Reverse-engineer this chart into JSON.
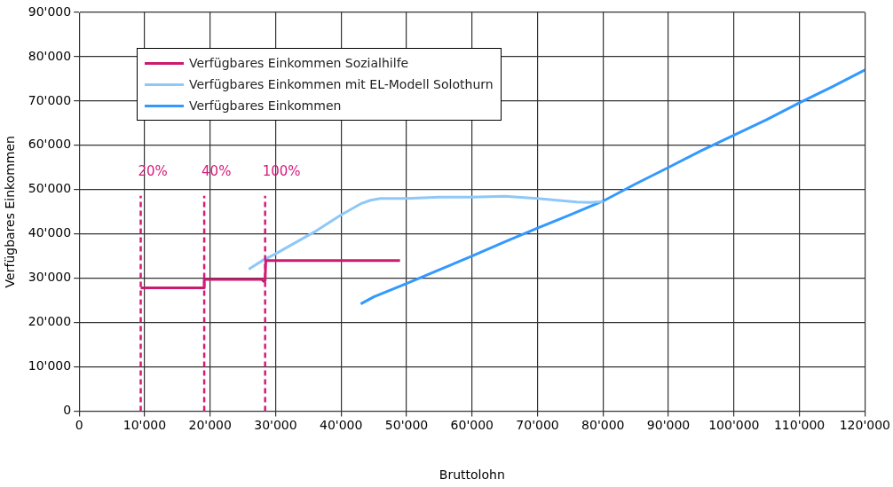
{
  "chart_data": {
    "type": "line",
    "xlabel": "Bruttolohn",
    "ylabel": "Verfügbares Einkommen",
    "xlim": [
      0,
      120000
    ],
    "xticks": [
      {
        "value": 0,
        "label": "0"
      },
      {
        "value": 10000,
        "label": "10'000"
      },
      {
        "value": 20000,
        "label": "20'000"
      },
      {
        "value": 30000,
        "label": "30'000"
      },
      {
        "value": 40000,
        "label": "40'000"
      },
      {
        "value": 50000,
        "label": "50'000"
      },
      {
        "value": 60000,
        "label": "60'000"
      },
      {
        "value": 70000,
        "label": "70'000"
      },
      {
        "value": 80000,
        "label": "80'000"
      },
      {
        "value": 90000,
        "label": "90'000"
      },
      {
        "value": 100000,
        "label": "100'000"
      },
      {
        "value": 110000,
        "label": "110'000"
      },
      {
        "value": 120000,
        "label": "120'000"
      }
    ],
    "ylim": [
      0,
      90000
    ],
    "yticks": [
      {
        "value": 0,
        "label": "0"
      },
      {
        "value": 10000,
        "label": "10'000"
      },
      {
        "value": 20000,
        "label": "20'000"
      },
      {
        "value": 30000,
        "label": "30'000"
      },
      {
        "value": 40000,
        "label": "40'000"
      },
      {
        "value": 50000,
        "label": "50'000"
      },
      {
        "value": 60000,
        "label": "60'000"
      },
      {
        "value": 70000,
        "label": "70'000"
      },
      {
        "value": 80000,
        "label": "80'000"
      },
      {
        "value": 90000,
        "label": "90'000"
      }
    ],
    "grid": true,
    "legend": "top left",
    "marker": "none",
    "series": [
      {
        "name": "Verfügbares Einkommen Sozialhilfe",
        "color": "#cc1a70",
        "x": [
          9400,
          19100,
          19100,
          27900,
          28200,
          28400,
          28500,
          49000
        ],
        "values": [
          27800,
          27800,
          29700,
          29700,
          29300,
          29500,
          34000,
          34000
        ]
      },
      {
        "name": "Verfügbares Einkommen mit EL-Modell Solothurn",
        "color": "#8ec8f8",
        "x": [
          25900,
          28000,
          30000,
          33000,
          36000,
          40000,
          43000,
          44500,
          46000,
          50000,
          55000,
          60000,
          65000,
          67000,
          70000,
          73000,
          76000,
          78000,
          80000
        ],
        "values": [
          32000,
          34000,
          35500,
          38000,
          40500,
          44300,
          46800,
          47600,
          48000,
          48000,
          48300,
          48300,
          48500,
          48300,
          48000,
          47600,
          47200,
          47100,
          47300
        ]
      },
      {
        "name": "Verfügbares Einkommen",
        "color": "#3399ff",
        "x": [
          43000,
          45000,
          50000,
          55000,
          60000,
          65000,
          70000,
          75000,
          80000,
          85000,
          90000,
          95000,
          100000,
          105000,
          110000,
          115000,
          120000
        ],
        "values": [
          24200,
          25800,
          28800,
          31900,
          35000,
          38200,
          41300,
          44300,
          47400,
          51300,
          55000,
          58800,
          62300,
          65800,
          69600,
          73200,
          77000
        ]
      }
    ],
    "ref_lines": [
      {
        "axis": "x",
        "value": 9400,
        "color": "#d6197a",
        "line_style": "dashed"
      },
      {
        "axis": "x",
        "value": 19100,
        "color": "#d6197a",
        "line_style": "dashed"
      },
      {
        "axis": "x",
        "value": 28400,
        "color": "#d6197a",
        "line_style": "dashed"
      }
    ],
    "annotations": [
      "20%",
      "40%",
      "100%"
    ]
  }
}
